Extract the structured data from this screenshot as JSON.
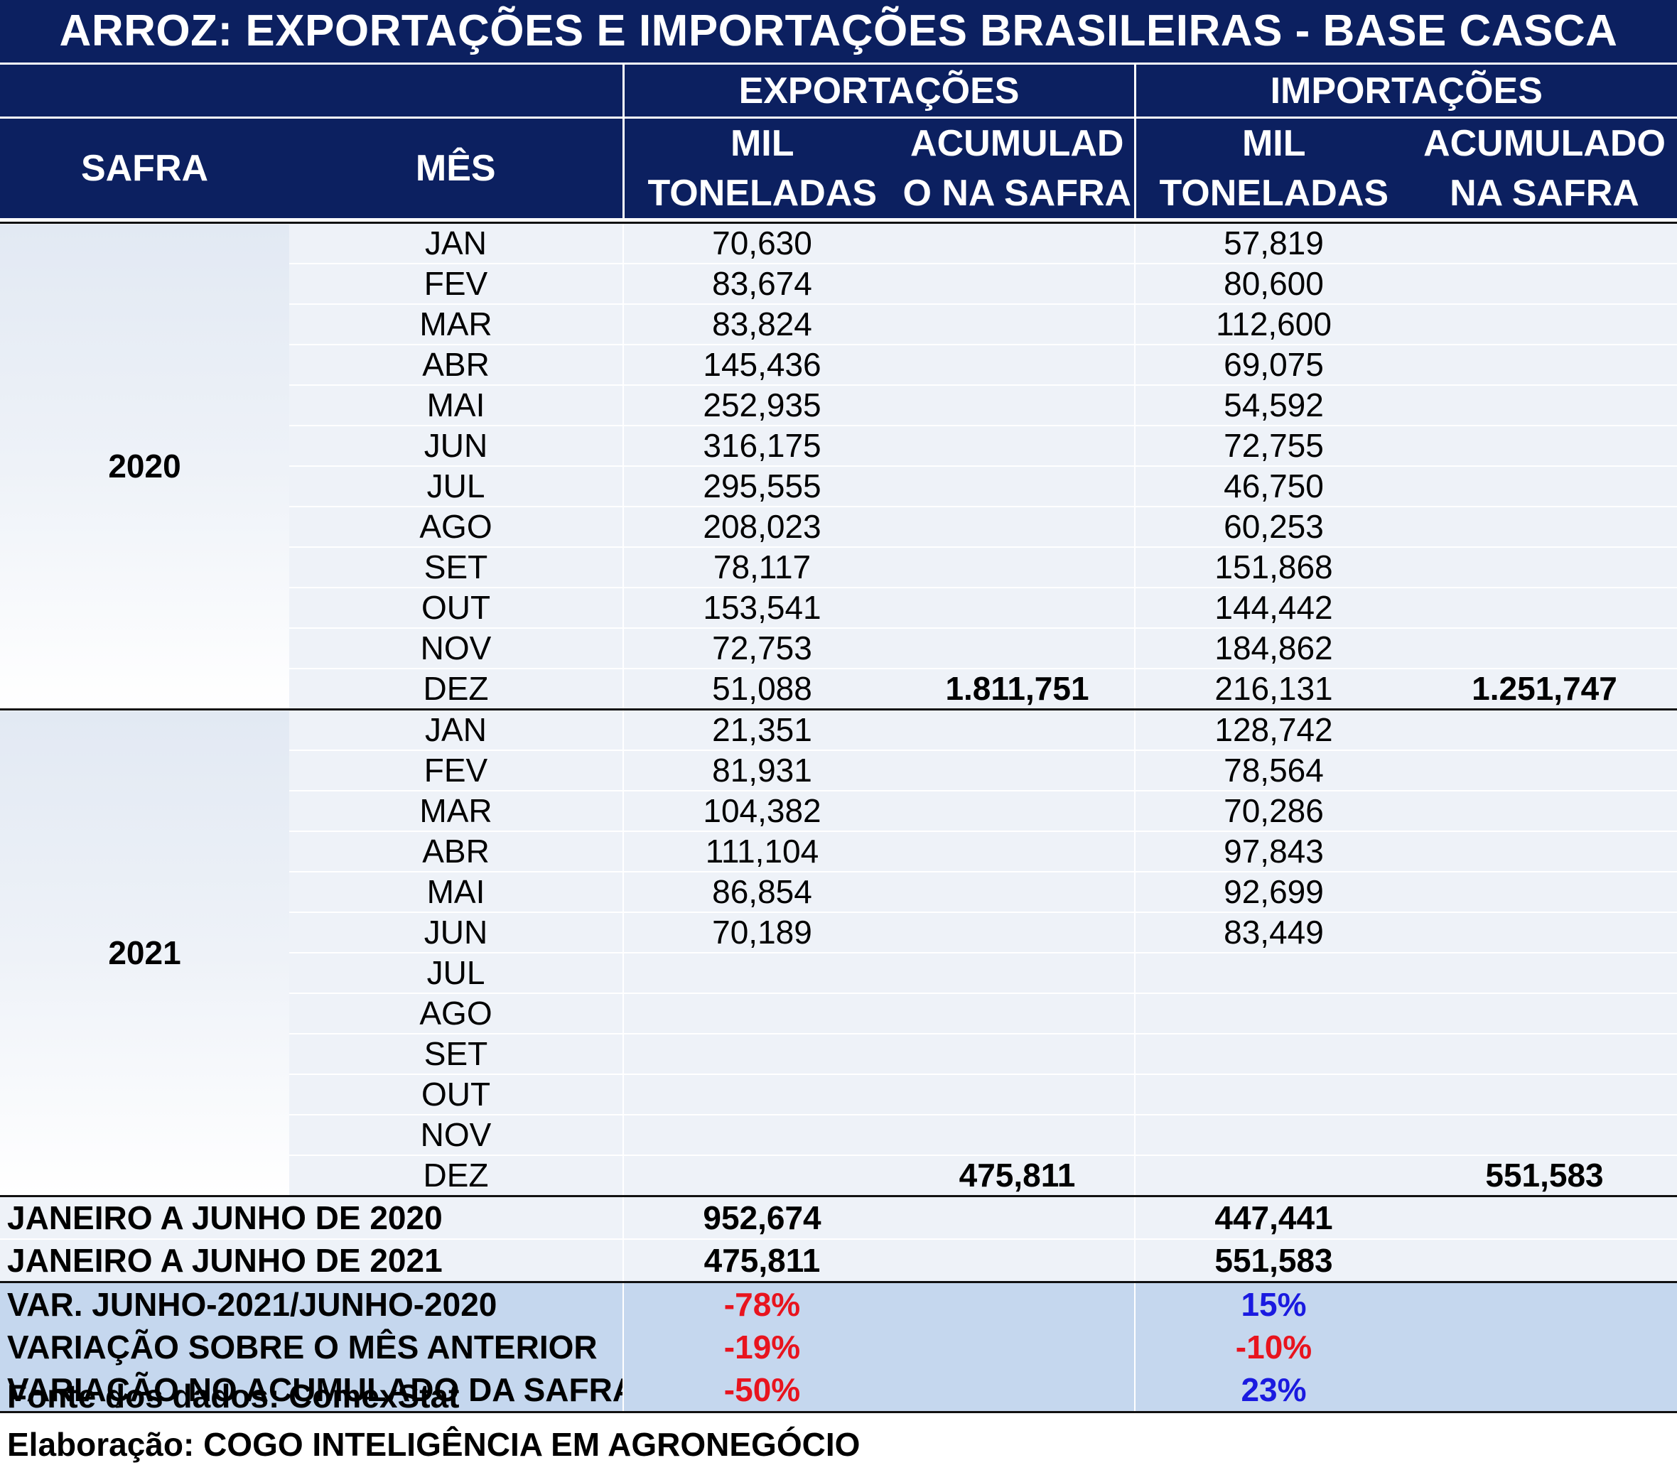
{
  "title": "ARROZ: EXPORTAÇÕES E IMPORTAÇÕES BRASILEIRAS - BASE CASCA",
  "headers": {
    "safra": "SAFRA",
    "mes": "MÊS",
    "exportacoes": "EXPORTAÇÕES",
    "importacoes": "IMPORTAÇÕES",
    "exp_mil_1": "MIL",
    "exp_mil_2": "TONELADAS",
    "exp_acum_1": "ACUMULAD",
    "exp_acum_2": "O NA SAFRA",
    "imp_mil_1": "MIL",
    "imp_mil_2": "TONELADAS",
    "imp_acum_1": "ACUMULADO",
    "imp_acum_2": "NA SAFRA"
  },
  "safras": [
    {
      "year": "2020",
      "rows": [
        {
          "mes": "JAN",
          "exp": "70,630",
          "exp_acum": "",
          "imp": "57,819",
          "imp_acum": ""
        },
        {
          "mes": "FEV",
          "exp": "83,674",
          "exp_acum": "",
          "imp": "80,600",
          "imp_acum": ""
        },
        {
          "mes": "MAR",
          "exp": "83,824",
          "exp_acum": "",
          "imp": "112,600",
          "imp_acum": ""
        },
        {
          "mes": "ABR",
          "exp": "145,436",
          "exp_acum": "",
          "imp": "69,075",
          "imp_acum": ""
        },
        {
          "mes": "MAI",
          "exp": "252,935",
          "exp_acum": "",
          "imp": "54,592",
          "imp_acum": ""
        },
        {
          "mes": "JUN",
          "exp": "316,175",
          "exp_acum": "",
          "imp": "72,755",
          "imp_acum": ""
        },
        {
          "mes": "JUL",
          "exp": "295,555",
          "exp_acum": "",
          "imp": "46,750",
          "imp_acum": ""
        },
        {
          "mes": "AGO",
          "exp": "208,023",
          "exp_acum": "",
          "imp": "60,253",
          "imp_acum": ""
        },
        {
          "mes": "SET",
          "exp": "78,117",
          "exp_acum": "",
          "imp": "151,868",
          "imp_acum": ""
        },
        {
          "mes": "OUT",
          "exp": "153,541",
          "exp_acum": "",
          "imp": "144,442",
          "imp_acum": ""
        },
        {
          "mes": "NOV",
          "exp": "72,753",
          "exp_acum": "",
          "imp": "184,862",
          "imp_acum": ""
        },
        {
          "mes": "DEZ",
          "exp": "51,088",
          "exp_acum": "1.811,751",
          "imp": "216,131",
          "imp_acum": "1.251,747"
        }
      ]
    },
    {
      "year": "2021",
      "rows": [
        {
          "mes": "JAN",
          "exp": "21,351",
          "exp_acum": "",
          "imp": "128,742",
          "imp_acum": ""
        },
        {
          "mes": "FEV",
          "exp": "81,931",
          "exp_acum": "",
          "imp": "78,564",
          "imp_acum": ""
        },
        {
          "mes": "MAR",
          "exp": "104,382",
          "exp_acum": "",
          "imp": "70,286",
          "imp_acum": ""
        },
        {
          "mes": "ABR",
          "exp": "111,104",
          "exp_acum": "",
          "imp": "97,843",
          "imp_acum": ""
        },
        {
          "mes": "MAI",
          "exp": "86,854",
          "exp_acum": "",
          "imp": "92,699",
          "imp_acum": ""
        },
        {
          "mes": "JUN",
          "exp": "70,189",
          "exp_acum": "",
          "imp": "83,449",
          "imp_acum": ""
        },
        {
          "mes": "JUL",
          "exp": "",
          "exp_acum": "",
          "imp": "",
          "imp_acum": ""
        },
        {
          "mes": "AGO",
          "exp": "",
          "exp_acum": "",
          "imp": "",
          "imp_acum": ""
        },
        {
          "mes": "SET",
          "exp": "",
          "exp_acum": "",
          "imp": "",
          "imp_acum": ""
        },
        {
          "mes": "OUT",
          "exp": "",
          "exp_acum": "",
          "imp": "",
          "imp_acum": ""
        },
        {
          "mes": "NOV",
          "exp": "",
          "exp_acum": "",
          "imp": "",
          "imp_acum": ""
        },
        {
          "mes": "DEZ",
          "exp": "",
          "exp_acum": "475,811",
          "imp": "",
          "imp_acum": "551,583"
        }
      ]
    }
  ],
  "summary": [
    {
      "label": "JANEIRO A JUNHO DE 2020",
      "exp": "952,674",
      "imp": "447,441"
    },
    {
      "label": "JANEIRO A JUNHO DE 2021",
      "exp": "475,811",
      "imp": "551,583"
    }
  ],
  "variations": [
    {
      "label": "VAR. JUNHO-2021/JUNHO-2020",
      "exp": "-78%",
      "imp": "15%"
    },
    {
      "label": "VARIAÇÃO SOBRE O MÊS ANTERIOR",
      "exp": "-19%",
      "imp": "-10%"
    },
    {
      "label": "VARIAÇÃO NO ACUMULADO DA SAFRA",
      "exp": "-50%",
      "imp": "23%"
    }
  ],
  "footer": {
    "source": "Fonte dos dados: ComexStat",
    "author": "Elaboração: COGO INTELIGÊNCIA EM AGRONEGÓCIO"
  },
  "colors": {
    "header_bg": "#0c2060",
    "row_bg": "#eef2f8",
    "var_bg": "#c5d7ee",
    "negative": "#e8141e",
    "positive": "#1a1ae0"
  }
}
